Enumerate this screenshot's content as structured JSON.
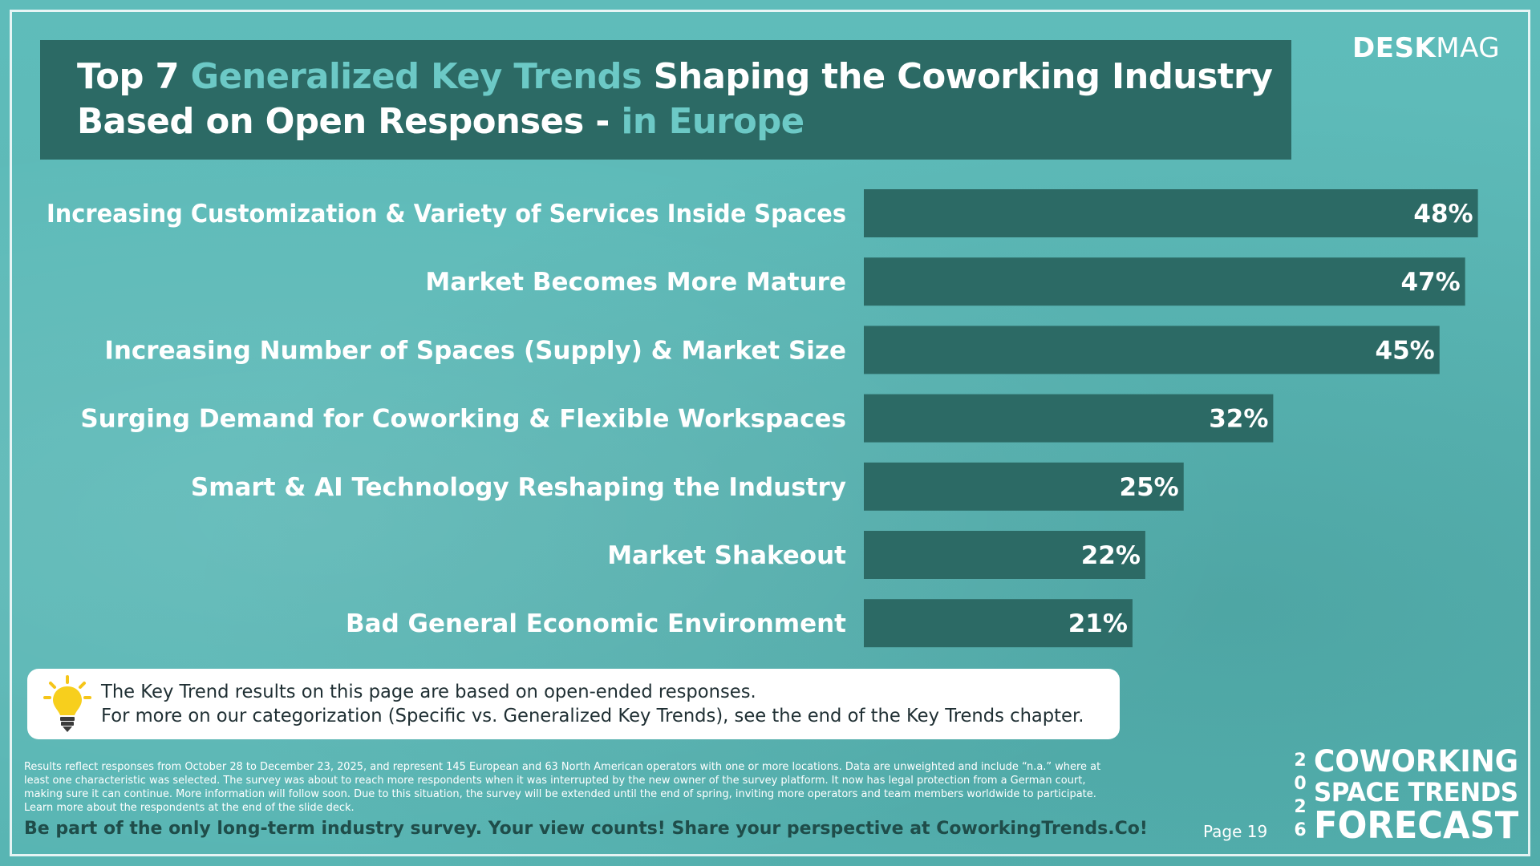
{
  "brand": {
    "logo_bold": "DESK",
    "logo_light": "MAG",
    "forecast_year_digits": "2 0 2 6",
    "forecast_line1": "COWORKING",
    "forecast_line2": "SPACE TRENDS",
    "forecast_line3": "FORECAST"
  },
  "title": {
    "l1_part1": "Top 7 ",
    "l1_accent": "Generalized Key Trends",
    "l1_part2": " Shaping the Coworking Industry",
    "l2_part1": "Based on Open Responses - ",
    "l2_accent": "in Europe"
  },
  "colors": {
    "background": "#5bb9b7",
    "title_box": "#2c6a65",
    "bar": "#2c6a65",
    "accent": "#6cc9c6"
  },
  "chart_data": {
    "type": "bar",
    "orientation": "horizontal",
    "categories": [
      "Increasing Customization & Variety of Services Inside Spaces",
      "Market Becomes More Mature",
      "Increasing Number of Spaces (Supply) & Market Size",
      "Surging Demand for Coworking & Flexible Workspaces",
      "Smart & AI Technology Reshaping the Industry",
      "Market Shakeout",
      "Bad General Economic Environment"
    ],
    "values": [
      48,
      47,
      45,
      32,
      25,
      22,
      21
    ],
    "value_labels": [
      "48%",
      "47%",
      "45%",
      "32%",
      "25%",
      "22%",
      "21%"
    ],
    "unit": "%",
    "grid": false,
    "legend": "none"
  },
  "note": {
    "icon": "lightbulb-icon",
    "line1": "The Key Trend results on this page are based on open-ended responses.",
    "line2": "For more on our categorization (Specific vs. Generalized Key Trends), see the end of the Key Trends chapter."
  },
  "footnote": {
    "l1": "Results reflect responses from October 28 to December 23, 2025, and represent 145 European and 63 North American operators with one or more locations. Data are unweighted and include “n.a.” where at",
    "l2": "least one characteristic was selected. The survey was about to reach more respondents when it was interrupted by the new owner of the survey platform. It now has legal protection from a German court,",
    "l3": "making sure it can continue. More information will follow soon. Due to this situation, the survey will be extended until the end of spring, inviting more operators and team members worldwide to participate.",
    "l4": "Learn more about the respondents at the end of the slide deck."
  },
  "cta": "Be part of the only long-term industry survey. Your view counts! Share your perspective at CoworkingTrends.Co!",
  "page_label": "Page 19"
}
